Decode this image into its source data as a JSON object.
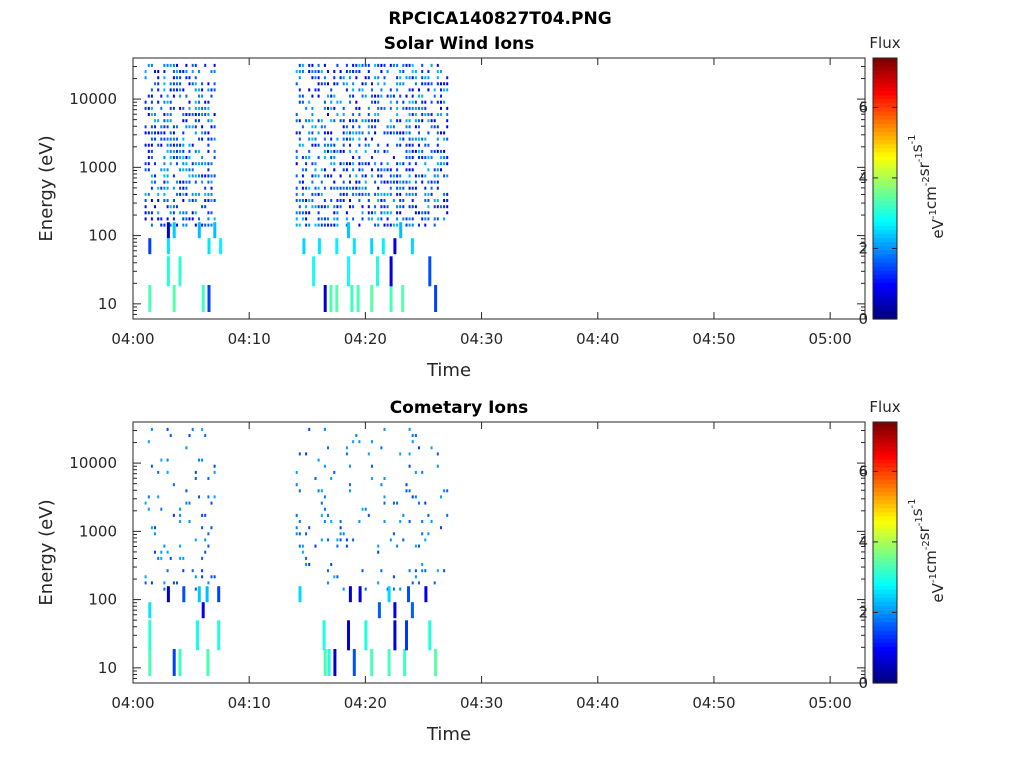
{
  "figure": {
    "title": "RPCICA140827T04.PNG"
  },
  "colorbar": {
    "label": "Flux",
    "units_parts": [
      {
        "t": "eV",
        "sup": false
      },
      {
        "t": "-1",
        "sup": true
      },
      {
        "t": "cm",
        "sup": false
      },
      {
        "t": "-2",
        "sup": true
      },
      {
        "t": "sr",
        "sup": false
      },
      {
        "t": "-1",
        "sup": true
      },
      {
        "t": "s",
        "sup": false
      },
      {
        "t": "-1",
        "sup": true
      }
    ],
    "ticks": [
      "0",
      "2",
      "4",
      "6"
    ],
    "range": [
      0,
      7.4
    ],
    "colormap": "jet"
  },
  "chart_data": [
    {
      "type": "heatmap",
      "title": "Solar Wind Ions",
      "xlabel": "Time",
      "ylabel": "Energy (eV)",
      "xlim": [
        "04:00",
        "05:03"
      ],
      "ylim": [
        6,
        40000
      ],
      "yscale": "log",
      "xticks": [
        "04:00",
        "04:10",
        "04:20",
        "04:30",
        "04:40",
        "04:50",
        "05:00"
      ],
      "yticks": [
        "10",
        "100",
        "1000",
        "10000"
      ],
      "active_intervals": [
        [
          "04:01",
          "04:07"
        ],
        [
          "04:14",
          "04:27"
        ]
      ],
      "points": [
        {
          "t": "04:01:24",
          "e": 12,
          "flux": 3.3
        },
        {
          "t": "04:03:30",
          "e": 12,
          "flux": 3.4
        },
        {
          "t": "04:06:00",
          "e": 12,
          "flux": 3.2
        },
        {
          "t": "04:06:30",
          "e": 12,
          "flux": 1.4
        },
        {
          "t": "04:16:30",
          "e": 12,
          "flux": 0.6
        },
        {
          "t": "04:17:00",
          "e": 12,
          "flux": 3.3
        },
        {
          "t": "04:17:30",
          "e": 12,
          "flux": 3.4
        },
        {
          "t": "04:18:48",
          "e": 12,
          "flux": 3.2
        },
        {
          "t": "04:19:20",
          "e": 12,
          "flux": 3.3
        },
        {
          "t": "04:20:30",
          "e": 12,
          "flux": 3.4
        },
        {
          "t": "04:22:10",
          "e": 12,
          "flux": 3.3
        },
        {
          "t": "04:23:10",
          "e": 12,
          "flux": 3.4
        },
        {
          "t": "04:26:00",
          "e": 12,
          "flux": 1.4
        },
        {
          "t": "04:03:00",
          "e": 30,
          "flux": 3.0
        },
        {
          "t": "04:04:00",
          "e": 30,
          "flux": 3.1
        },
        {
          "t": "04:15:30",
          "e": 30,
          "flux": 2.9
        },
        {
          "t": "04:18:30",
          "e": 30,
          "flux": 2.9
        },
        {
          "t": "04:21:00",
          "e": 30,
          "flux": 3.0
        },
        {
          "t": "04:22:10",
          "e": 30,
          "flux": 0.7
        },
        {
          "t": "04:25:30",
          "e": 30,
          "flux": 1.5
        },
        {
          "t": "04:01:24",
          "e": 70,
          "flux": 1.4
        },
        {
          "t": "04:03:00",
          "e": 70,
          "flux": 2.6
        },
        {
          "t": "04:06:30",
          "e": 70,
          "flux": 2.6
        },
        {
          "t": "04:07:30",
          "e": 70,
          "flux": 2.7
        },
        {
          "t": "04:14:40",
          "e": 70,
          "flux": 2.5
        },
        {
          "t": "04:16:00",
          "e": 70,
          "flux": 2.6
        },
        {
          "t": "04:17:30",
          "e": 70,
          "flux": 2.7
        },
        {
          "t": "04:19:00",
          "e": 70,
          "flux": 2.6
        },
        {
          "t": "04:20:30",
          "e": 70,
          "flux": 2.5
        },
        {
          "t": "04:21:30",
          "e": 70,
          "flux": 2.7
        },
        {
          "t": "04:22:30",
          "e": 70,
          "flux": 0.8
        },
        {
          "t": "04:24:00",
          "e": 70,
          "flux": 2.5
        },
        {
          "t": "04:03:00",
          "e": 120,
          "flux": 0.6
        },
        {
          "t": "04:05:40",
          "e": 120,
          "flux": 2.3
        },
        {
          "t": "04:07:00",
          "e": 120,
          "flux": 2.3
        },
        {
          "t": "04:18:30",
          "e": 120,
          "flux": 2.4
        },
        {
          "t": "04:23:00",
          "e": 120,
          "flux": 2.3
        },
        {
          "t": "04:03:30",
          "e": 120,
          "flux": 2.4
        }
      ]
    },
    {
      "type": "heatmap",
      "title": "Cometary Ions",
      "xlabel": "Time",
      "ylabel": "Energy (eV)",
      "xlim": [
        "04:00",
        "05:03"
      ],
      "ylim": [
        6,
        40000
      ],
      "yscale": "log",
      "xticks": [
        "04:00",
        "04:10",
        "04:20",
        "04:30",
        "04:40",
        "04:50",
        "05:00"
      ],
      "yticks": [
        "10",
        "100",
        "1000",
        "10000"
      ],
      "active_intervals": [
        [
          "04:01",
          "04:07"
        ],
        [
          "04:14",
          "04:27"
        ]
      ],
      "points": [
        {
          "t": "04:01:24",
          "e": 12,
          "flux": 3.3
        },
        {
          "t": "04:03:30",
          "e": 12,
          "flux": 1.4
        },
        {
          "t": "04:04:00",
          "e": 12,
          "flux": 3.2
        },
        {
          "t": "04:06:24",
          "e": 12,
          "flux": 3.3
        },
        {
          "t": "04:16:30",
          "e": 12,
          "flux": 3.3
        },
        {
          "t": "04:16:50",
          "e": 12,
          "flux": 3.0
        },
        {
          "t": "04:17:20",
          "e": 12,
          "flux": 0.6
        },
        {
          "t": "04:19:00",
          "e": 12,
          "flux": 1.5
        },
        {
          "t": "04:20:30",
          "e": 12,
          "flux": 3.3
        },
        {
          "t": "04:22:00",
          "e": 12,
          "flux": 3.3
        },
        {
          "t": "04:23:20",
          "e": 12,
          "flux": 3.2
        },
        {
          "t": "04:26:00",
          "e": 12,
          "flux": 3.4
        },
        {
          "t": "04:01:24",
          "e": 30,
          "flux": 3.1
        },
        {
          "t": "04:05:30",
          "e": 30,
          "flux": 2.9
        },
        {
          "t": "04:07:20",
          "e": 30,
          "flux": 3.0
        },
        {
          "t": "04:16:24",
          "e": 30,
          "flux": 3.0
        },
        {
          "t": "04:18:30",
          "e": 30,
          "flux": 0.6
        },
        {
          "t": "04:20:00",
          "e": 30,
          "flux": 3.0
        },
        {
          "t": "04:22:30",
          "e": 30,
          "flux": 0.7
        },
        {
          "t": "04:23:30",
          "e": 30,
          "flux": 1.3
        },
        {
          "t": "04:25:30",
          "e": 30,
          "flux": 3.0
        },
        {
          "t": "04:01:24",
          "e": 70,
          "flux": 2.6
        },
        {
          "t": "04:06:00",
          "e": 70,
          "flux": 0.9
        },
        {
          "t": "04:21:10",
          "e": 70,
          "flux": 1.6
        },
        {
          "t": "04:22:30",
          "e": 70,
          "flux": 0.8
        },
        {
          "t": "04:24:00",
          "e": 70,
          "flux": 1.6
        },
        {
          "t": "04:03:00",
          "e": 120,
          "flux": 0.6
        },
        {
          "t": "04:04:20",
          "e": 120,
          "flux": 1.5
        },
        {
          "t": "04:05:40",
          "e": 120,
          "flux": 2.4
        },
        {
          "t": "04:06:20",
          "e": 120,
          "flux": 2.3
        },
        {
          "t": "04:07:20",
          "e": 120,
          "flux": 1.4
        },
        {
          "t": "04:14:20",
          "e": 120,
          "flux": 2.5
        },
        {
          "t": "04:18:40",
          "e": 120,
          "flux": 0.6
        },
        {
          "t": "04:19:30",
          "e": 120,
          "flux": 0.7
        },
        {
          "t": "04:22:00",
          "e": 120,
          "flux": 2.5
        },
        {
          "t": "04:23:40",
          "e": 120,
          "flux": 1.5
        },
        {
          "t": "04:25:10",
          "e": 120,
          "flux": 0.8
        }
      ]
    }
  ]
}
